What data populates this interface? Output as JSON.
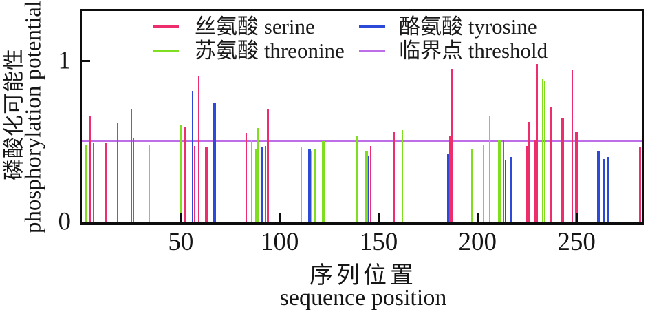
{
  "figure": {
    "y_axis_title_cjk": "磷酸化可能性",
    "y_axis_title_en": "phosphorylation potential",
    "x_axis_title_cjk": "序列位置",
    "x_axis_title_en": "sequence position"
  },
  "chart_data": {
    "type": "bar",
    "title": "",
    "xlabel": "序列位置 sequence position",
    "ylabel": "磷酸化可能性 phosphorylation potential",
    "xlim": [
      0,
      283
    ],
    "ylim": [
      0,
      1.31
    ],
    "grid": false,
    "legend_position": "top-inside",
    "x_ticks": [
      {
        "v": 50,
        "label": "50"
      },
      {
        "v": 100,
        "label": "100"
      },
      {
        "v": 150,
        "label": "150"
      },
      {
        "v": 200,
        "label": "200"
      },
      {
        "v": 250,
        "label": "250"
      }
    ],
    "y_ticks": [
      {
        "v": 1,
        "label": "1"
      },
      {
        "v": 0,
        "label": "0"
      }
    ],
    "threshold": {
      "value": 0.5,
      "color": "#bf6ce8"
    },
    "series": [
      {
        "name": "丝氨酸 serine",
        "color": "#ee2e6c",
        "points": [
          [
            4,
            0.66,
            2
          ],
          [
            6,
            0.49,
            2
          ],
          [
            12,
            0.49,
            4
          ],
          [
            18,
            0.61,
            2
          ],
          [
            25,
            0.7,
            2
          ],
          [
            26,
            0.52,
            2
          ],
          [
            52,
            0.59,
            4
          ],
          [
            57,
            0.47,
            2
          ],
          [
            59,
            0.9,
            2
          ],
          [
            63,
            0.46,
            4
          ],
          [
            83,
            0.55,
            2
          ],
          [
            93,
            0.47,
            2
          ],
          [
            94,
            0.7,
            3
          ],
          [
            146,
            0.47,
            2
          ],
          [
            158,
            0.56,
            2
          ],
          [
            186,
            0.53,
            2
          ],
          [
            187,
            0.95,
            4
          ],
          [
            213,
            0.51,
            2
          ],
          [
            225,
            0.47,
            2
          ],
          [
            226,
            0.62,
            2
          ],
          [
            229,
            0.51,
            2
          ],
          [
            230,
            0.98,
            3
          ],
          [
            237,
            0.71,
            2
          ],
          [
            243,
            0.64,
            4
          ],
          [
            248,
            0.94,
            2
          ],
          [
            250,
            0.56,
            4
          ],
          [
            282,
            0.46,
            3
          ]
        ]
      },
      {
        "name": "苏氨酸 threonine",
        "color": "#7fde20",
        "points": [
          [
            2,
            0.48,
            4
          ],
          [
            34,
            0.48,
            2
          ],
          [
            50,
            0.6,
            2
          ],
          [
            86,
            0.51,
            2
          ],
          [
            88,
            0.45,
            2
          ],
          [
            89,
            0.58,
            2
          ],
          [
            111,
            0.46,
            2
          ],
          [
            116,
            0.44,
            2
          ],
          [
            118,
            0.45,
            2
          ],
          [
            122,
            0.5,
            4
          ],
          [
            139,
            0.53,
            2
          ],
          [
            144,
            0.44,
            4
          ],
          [
            162,
            0.57,
            2
          ],
          [
            197,
            0.45,
            2
          ],
          [
            203,
            0.48,
            2
          ],
          [
            206,
            0.66,
            2
          ],
          [
            211,
            0.51,
            4
          ],
          [
            233,
            0.89,
            2
          ],
          [
            234,
            0.87,
            2
          ]
        ]
      },
      {
        "name": "酪氨酸 tyrosine",
        "color": "#2c49d8",
        "points": [
          [
            56,
            0.81,
            2
          ],
          [
            67,
            0.74,
            4
          ],
          [
            91,
            0.46,
            2
          ],
          [
            115,
            0.45,
            4
          ],
          [
            145,
            0.41,
            2
          ],
          [
            185,
            0.42,
            3
          ],
          [
            214,
            0.38,
            2
          ],
          [
            217,
            0.4,
            4
          ],
          [
            261,
            0.44,
            4
          ],
          [
            264,
            0.39,
            2
          ],
          [
            266,
            0.4,
            2
          ]
        ]
      },
      {
        "name": "临界点 threshold",
        "color": "#bf6ce8",
        "points": []
      }
    ]
  }
}
